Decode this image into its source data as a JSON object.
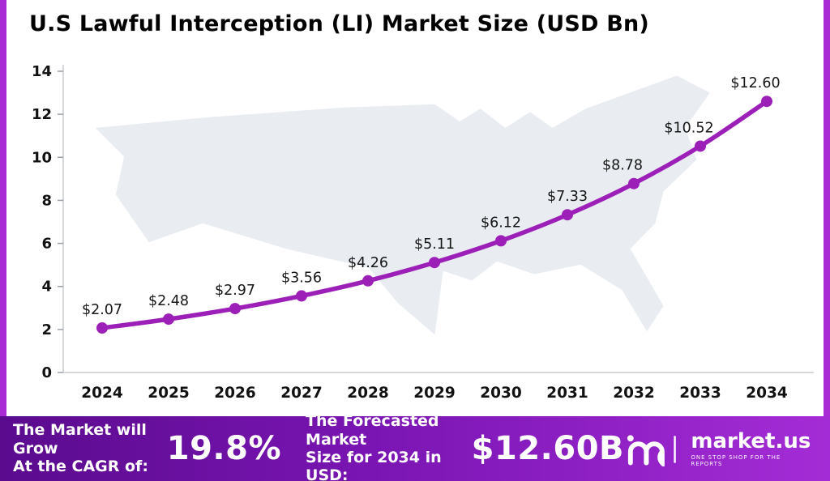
{
  "title": "U.S Lawful Interception (LI) Market Size (USD Bn)",
  "chart_data": {
    "type": "line",
    "title": "U.S Lawful Interception (LI) Market Size (USD Bn)",
    "categories": [
      "2024",
      "2025",
      "2026",
      "2027",
      "2028",
      "2029",
      "2030",
      "2031",
      "2032",
      "2033",
      "2034"
    ],
    "values": [
      2.07,
      2.48,
      2.97,
      3.56,
      4.26,
      5.11,
      6.12,
      7.33,
      8.78,
      10.52,
      12.6
    ],
    "labels": [
      "$2.07",
      "$2.48",
      "$2.97",
      "$3.56",
      "$4.26",
      "$5.11",
      "$6.12",
      "$7.33",
      "$8.78",
      "$10.52",
      "$12.60"
    ],
    "xlabel": "",
    "ylabel": "",
    "ylim": [
      0,
      14
    ],
    "yticks": [
      0,
      2,
      4,
      6,
      8,
      10,
      12,
      14
    ],
    "grid": false,
    "legend": false,
    "line_color": "#9c1fb8",
    "background": "usa-map-silhouette"
  },
  "banner": {
    "cagr_label_line1": "The Market will Grow",
    "cagr_label_line2": "At the CAGR of:",
    "cagr_value": "19.8%",
    "forecast_label_line1": "The Forecasted Market",
    "forecast_label_line2": "Size for 2034 in USD:",
    "forecast_value": "$12.60B",
    "logo_text": "market.us",
    "logo_tagline": "ONE STOP SHOP FOR THE REPORTS"
  },
  "colors": {
    "accent": "#9c1fb8",
    "frame_border": "#a82bd5",
    "banner_gradient_start": "#5a0b8e",
    "banner_gradient_end": "#a42cd6",
    "map_fill": "#e9edf2",
    "axis": "#c9ccd1",
    "text": "#111111"
  }
}
